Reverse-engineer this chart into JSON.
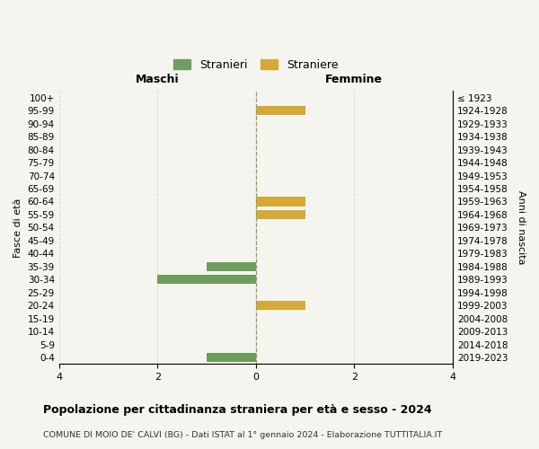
{
  "age_groups": [
    "100+",
    "95-99",
    "90-94",
    "85-89",
    "80-84",
    "75-79",
    "70-74",
    "65-69",
    "60-64",
    "55-59",
    "50-54",
    "45-49",
    "40-44",
    "35-39",
    "30-34",
    "25-29",
    "20-24",
    "15-19",
    "10-14",
    "5-9",
    "0-4"
  ],
  "birth_years": [
    "≤ 1923",
    "1924-1928",
    "1929-1933",
    "1934-1938",
    "1939-1943",
    "1944-1948",
    "1949-1953",
    "1954-1958",
    "1959-1963",
    "1964-1968",
    "1969-1973",
    "1974-1978",
    "1979-1983",
    "1984-1988",
    "1989-1993",
    "1994-1998",
    "1999-2003",
    "2004-2008",
    "2009-2013",
    "2014-2018",
    "2019-2023"
  ],
  "maschi_stranieri": [
    0,
    0,
    0,
    0,
    0,
    0,
    0,
    0,
    0,
    0,
    0,
    0,
    0,
    1,
    2,
    0,
    0,
    0,
    0,
    0,
    1
  ],
  "femmine_straniere": [
    0,
    1,
    0,
    0,
    0,
    0,
    0,
    0,
    1,
    1,
    0,
    0,
    0,
    0,
    0,
    0,
    1,
    0,
    0,
    0,
    0
  ],
  "color_maschi": "#6d9e5e",
  "color_femmine": "#d4a937",
  "background_color": "#f5f5f0",
  "grid_color": "#c8c8c8",
  "xlim": 4,
  "title": "Popolazione per cittadinanza straniera per età e sesso - 2024",
  "subtitle": "COMUNE DI MOIO DE' CALVI (BG) - Dati ISTAT al 1° gennaio 2024 - Elaborazione TUTTITALIA.IT",
  "legend_stranieri": "Stranieri",
  "legend_straniere": "Straniere",
  "xlabel_maschi": "Maschi",
  "xlabel_femmine": "Femmine",
  "ylabel_left": "Fasce di età",
  "ylabel_right": "Anni di nascita"
}
